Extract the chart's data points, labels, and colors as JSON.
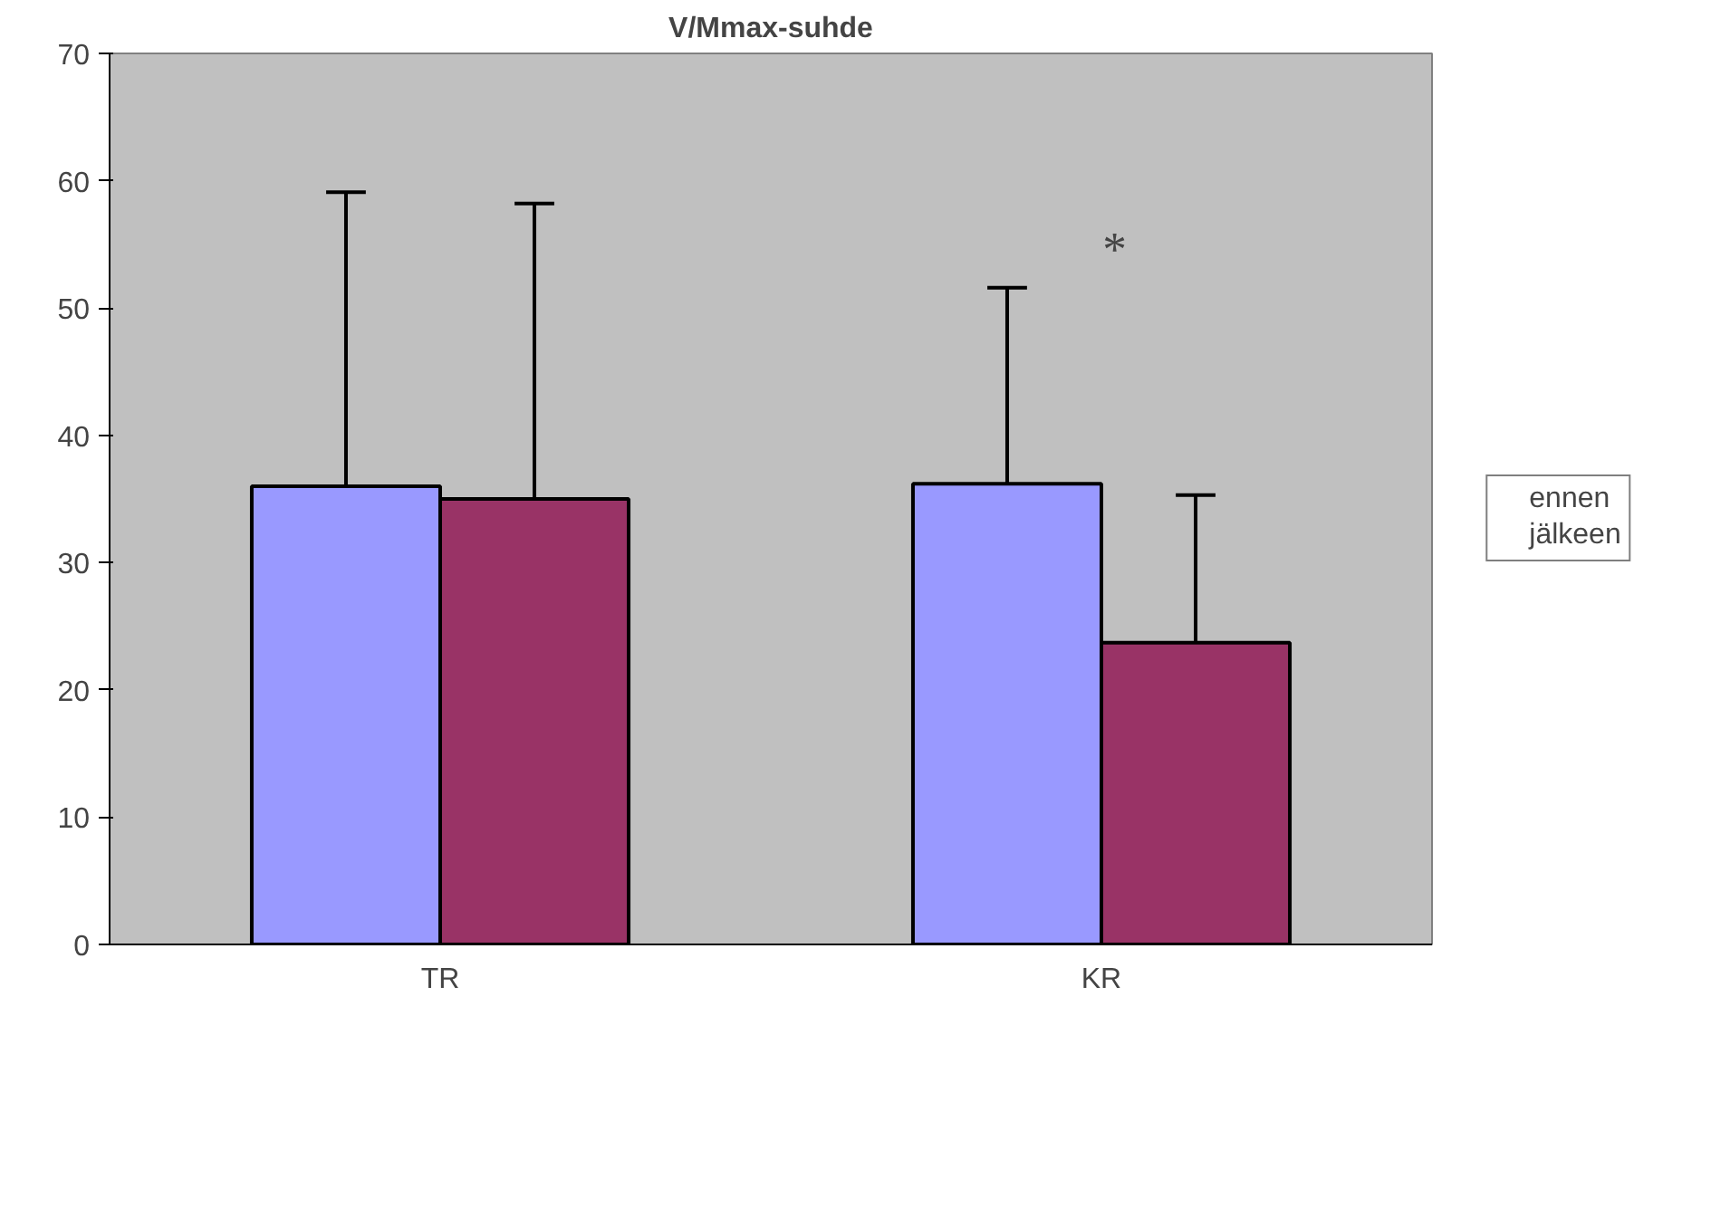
{
  "chart_data": {
    "type": "bar",
    "title": "V/Mmax-suhde",
    "categories": [
      "TR",
      "KR"
    ],
    "series": [
      {
        "name": "ennen",
        "color": "#9999ff",
        "values": [
          36.0,
          36.2
        ],
        "errors": [
          [
            36.0,
            59.1
          ],
          [
            36.2,
            51.6
          ]
        ]
      },
      {
        "name": "jälkeen",
        "color": "#993366",
        "values": [
          35.0,
          23.7
        ],
        "errors": [
          [
            35.0,
            58.2
          ],
          [
            23.7,
            35.3
          ]
        ]
      }
    ],
    "ylim": [
      0,
      70
    ],
    "yticks": [
      0,
      10,
      20,
      30,
      40,
      50,
      60,
      70
    ],
    "grid": false,
    "legend": "right",
    "annotations": [
      "*"
    ]
  }
}
